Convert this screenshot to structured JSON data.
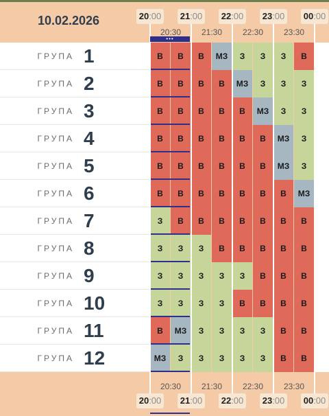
{
  "schedule": {
    "date": "10.02.2026",
    "group_word": "ГРУПА",
    "top_hours": [
      {
        "hh": "20",
        "mm": ":00"
      },
      {
        "hh": "21",
        "mm": ":00"
      },
      {
        "hh": "22",
        "mm": ":00"
      },
      {
        "hh": "23",
        "mm": ":00"
      },
      {
        "hh": "00",
        "mm": ":00"
      }
    ],
    "half_hours": [
      "20:30",
      "21:30",
      "22:30",
      "23:30"
    ],
    "legend": {
      "v": {
        "label": "В",
        "color": "#e06a5a"
      },
      "z": {
        "label": "З",
        "color": "#c6d69a"
      },
      "mz": {
        "label": "МЗ",
        "color": "#a7b7c2"
      }
    },
    "marker_dots": "•••",
    "groups": [
      {
        "num": "1",
        "slots": [
          "В",
          "В",
          "В",
          "МЗ",
          "З",
          "З",
          "З",
          "В"
        ]
      },
      {
        "num": "2",
        "slots": [
          "В",
          "В",
          "В",
          "В",
          "МЗ",
          "З",
          "З",
          "З"
        ]
      },
      {
        "num": "3",
        "slots": [
          "В",
          "В",
          "В",
          "В",
          "В",
          "МЗ",
          "З",
          "З"
        ]
      },
      {
        "num": "4",
        "slots": [
          "В",
          "В",
          "В",
          "В",
          "В",
          "В",
          "МЗ",
          "З"
        ]
      },
      {
        "num": "5",
        "slots": [
          "В",
          "В",
          "В",
          "В",
          "В",
          "В",
          "МЗ",
          "З"
        ]
      },
      {
        "num": "6",
        "slots": [
          "В",
          "В",
          "В",
          "В",
          "В",
          "В",
          "В",
          "МЗ"
        ]
      },
      {
        "num": "7",
        "slots": [
          "З",
          "В",
          "В",
          "В",
          "В",
          "В",
          "В",
          "В"
        ]
      },
      {
        "num": "8",
        "slots": [
          "З",
          "З",
          "З",
          "В",
          "В",
          "В",
          "В",
          "В"
        ]
      },
      {
        "num": "9",
        "slots": [
          "З",
          "З",
          "З",
          "З",
          "З",
          "В",
          "В",
          "В"
        ]
      },
      {
        "num": "10",
        "slots": [
          "З",
          "З",
          "З",
          "З",
          "В",
          "В",
          "В",
          "В"
        ]
      },
      {
        "num": "11",
        "slots": [
          "В",
          "МЗ",
          "З",
          "З",
          "З",
          "З",
          "В",
          "В"
        ]
      },
      {
        "num": "12",
        "slots": [
          "МЗ",
          "З",
          "З",
          "З",
          "З",
          "З",
          "В",
          "В"
        ]
      }
    ]
  }
}
